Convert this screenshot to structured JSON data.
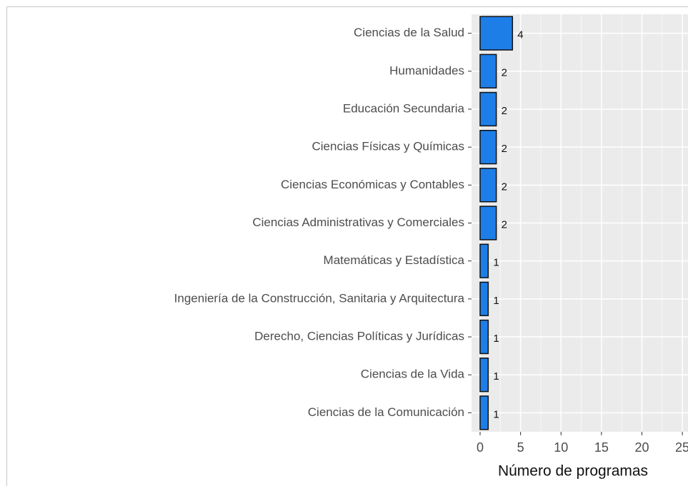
{
  "chart_data": {
    "type": "bar",
    "orientation": "horizontal",
    "categories": [
      "Ciencias de la Salud",
      "Humanidades",
      "Educación Secundaria",
      "Ciencias Físicas y Químicas",
      "Ciencias Económicas y Contables",
      "Ciencias Administrativas y Comerciales",
      "Matemáticas y Estadística",
      "Ingeniería de la Construcción, Sanitaria y Arquitectura",
      "Derecho, Ciencias Políticas y Jurídicas",
      "Ciencias de la Vida",
      "Ciencias de la Comunicación"
    ],
    "values": [
      4,
      2,
      2,
      2,
      2,
      2,
      1,
      1,
      1,
      1,
      1
    ],
    "color": "#1e7ee8",
    "xlabel": "Número de programas",
    "xlim": [
      -1.06,
      25.7
    ],
    "xticks": [
      0,
      5,
      10,
      15,
      20,
      25
    ],
    "xminorticks": [
      2.5,
      7.5,
      12.5,
      17.5,
      22.5
    ],
    "grid": true
  }
}
